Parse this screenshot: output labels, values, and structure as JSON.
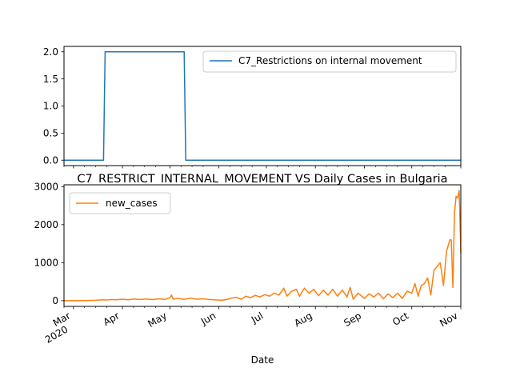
{
  "chart_data": [
    {
      "type": "line",
      "title": "",
      "xlabel": "",
      "ylabel": "",
      "x_range": [
        "2020-02-24",
        "2020-11-01"
      ],
      "ylim": [
        -0.1,
        2.1
      ],
      "yticks": [
        0.0,
        0.5,
        1.0,
        1.5,
        2.0
      ],
      "ytick_labels": [
        "0.0",
        "0.5",
        "1.0",
        "1.5",
        "2.0"
      ],
      "legend_position": "top-right",
      "series": [
        {
          "name": "C7_Restrictions on internal movement",
          "color": "#1f77b4",
          "points": [
            [
              "2020-02-24",
              0
            ],
            [
              "2020-03-20",
              0
            ],
            [
              "2020-03-21",
              2
            ],
            [
              "2020-05-10",
              2
            ],
            [
              "2020-05-11",
              0
            ],
            [
              "2020-11-01",
              0
            ]
          ]
        }
      ]
    },
    {
      "type": "line",
      "title": "C7_RESTRICT_INTERNAL_MOVEMENT VS Daily Cases in Bulgaria",
      "xlabel": "Date",
      "ylabel": "",
      "x_range": [
        "2020-02-24",
        "2020-11-01"
      ],
      "ylim": [
        -150,
        3050
      ],
      "yticks": [
        0,
        1000,
        2000,
        3000
      ],
      "ytick_labels": [
        "0",
        "1000",
        "2000",
        "3000"
      ],
      "xticks": [
        {
          "date": "2020-03-01",
          "label": "Mar",
          "sublabel": "2020"
        },
        {
          "date": "2020-04-01",
          "label": "Apr",
          "sublabel": ""
        },
        {
          "date": "2020-05-01",
          "label": "May",
          "sublabel": ""
        },
        {
          "date": "2020-06-01",
          "label": "Jun",
          "sublabel": ""
        },
        {
          "date": "2020-07-01",
          "label": "Jul",
          "sublabel": ""
        },
        {
          "date": "2020-08-01",
          "label": "Aug",
          "sublabel": ""
        },
        {
          "date": "2020-09-01",
          "label": "Sep",
          "sublabel": ""
        },
        {
          "date": "2020-10-01",
          "label": "Oct",
          "sublabel": ""
        },
        {
          "date": "2020-11-01",
          "label": "Nov",
          "sublabel": ""
        }
      ],
      "legend_position": "top-left",
      "series": [
        {
          "name": "new_cases",
          "color": "#ff7f0e",
          "points": [
            [
              "2020-02-24",
              0
            ],
            [
              "2020-03-08",
              4
            ],
            [
              "2020-03-15",
              10
            ],
            [
              "2020-03-20",
              25
            ],
            [
              "2020-03-22",
              18
            ],
            [
              "2020-03-25",
              30
            ],
            [
              "2020-03-28",
              22
            ],
            [
              "2020-04-01",
              40
            ],
            [
              "2020-04-05",
              25
            ],
            [
              "2020-04-08",
              45
            ],
            [
              "2020-04-12",
              30
            ],
            [
              "2020-04-16",
              45
            ],
            [
              "2020-04-20",
              28
            ],
            [
              "2020-04-24",
              50
            ],
            [
              "2020-04-28",
              35
            ],
            [
              "2020-05-01",
              80
            ],
            [
              "2020-05-02",
              150
            ],
            [
              "2020-05-03",
              40
            ],
            [
              "2020-05-06",
              60
            ],
            [
              "2020-05-10",
              35
            ],
            [
              "2020-05-14",
              70
            ],
            [
              "2020-05-18",
              40
            ],
            [
              "2020-05-22",
              50
            ],
            [
              "2020-05-26",
              30
            ],
            [
              "2020-05-30",
              20
            ],
            [
              "2020-06-03",
              15
            ],
            [
              "2020-06-06",
              30
            ],
            [
              "2020-06-09",
              70
            ],
            [
              "2020-06-12",
              90
            ],
            [
              "2020-06-15",
              40
            ],
            [
              "2020-06-18",
              120
            ],
            [
              "2020-06-21",
              80
            ],
            [
              "2020-06-24",
              140
            ],
            [
              "2020-06-27",
              100
            ],
            [
              "2020-06-30",
              160
            ],
            [
              "2020-07-03",
              120
            ],
            [
              "2020-07-06",
              200
            ],
            [
              "2020-07-09",
              150
            ],
            [
              "2020-07-12",
              330
            ],
            [
              "2020-07-14",
              120
            ],
            [
              "2020-07-17",
              250
            ],
            [
              "2020-07-20",
              300
            ],
            [
              "2020-07-22",
              120
            ],
            [
              "2020-07-25",
              330
            ],
            [
              "2020-07-28",
              200
            ],
            [
              "2020-07-31",
              300
            ],
            [
              "2020-08-03",
              130
            ],
            [
              "2020-08-06",
              280
            ],
            [
              "2020-08-09",
              150
            ],
            [
              "2020-08-12",
              300
            ],
            [
              "2020-08-15",
              120
            ],
            [
              "2020-08-18",
              280
            ],
            [
              "2020-08-21",
              100
            ],
            [
              "2020-08-23",
              350
            ],
            [
              "2020-08-25",
              40
            ],
            [
              "2020-08-28",
              200
            ],
            [
              "2020-09-01",
              60
            ],
            [
              "2020-09-04",
              180
            ],
            [
              "2020-09-07",
              100
            ],
            [
              "2020-09-10",
              200
            ],
            [
              "2020-09-13",
              50
            ],
            [
              "2020-09-16",
              180
            ],
            [
              "2020-09-19",
              80
            ],
            [
              "2020-09-22",
              200
            ],
            [
              "2020-09-25",
              60
            ],
            [
              "2020-09-28",
              250
            ],
            [
              "2020-10-01",
              200
            ],
            [
              "2020-10-03",
              450
            ],
            [
              "2020-10-05",
              120
            ],
            [
              "2020-10-07",
              400
            ],
            [
              "2020-10-09",
              450
            ],
            [
              "2020-10-11",
              600
            ],
            [
              "2020-10-13",
              150
            ],
            [
              "2020-10-15",
              800
            ],
            [
              "2020-10-17",
              900
            ],
            [
              "2020-10-19",
              1000
            ],
            [
              "2020-10-21",
              400
            ],
            [
              "2020-10-23",
              1300
            ],
            [
              "2020-10-25",
              1600
            ],
            [
              "2020-10-26",
              1600
            ],
            [
              "2020-10-27",
              350
            ],
            [
              "2020-10-28",
              2300
            ],
            [
              "2020-10-29",
              2750
            ],
            [
              "2020-10-30",
              2700
            ],
            [
              "2020-10-31",
              2900
            ],
            [
              "2020-11-01",
              1250
            ]
          ]
        }
      ]
    }
  ]
}
